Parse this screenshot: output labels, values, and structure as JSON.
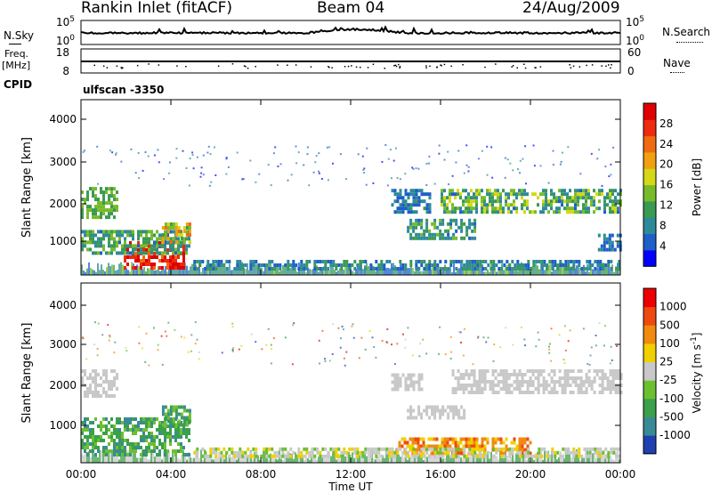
{
  "header": {
    "station": "Rankin Inlet (fitACF)",
    "beam": "Beam 04",
    "date": "24/Aug/2009"
  },
  "left_labels": {
    "nsky": "N.Sky",
    "freq_line1": "Freq.",
    "freq_line2": "[MHz]",
    "cpid": "CPID"
  },
  "right_labels": {
    "nsearch": "N.Search",
    "nave": "Nave"
  },
  "cpid_value": "ulfscan -3350",
  "chart_data": [
    {
      "type": "line",
      "name": "noise",
      "series": [
        {
          "name": "N.Sky"
        },
        {
          "name": "N.Search"
        }
      ],
      "left_ticks": [
        "10^5",
        "10^0"
      ],
      "right_ticks": [
        "10^5",
        "10^0"
      ]
    },
    {
      "type": "scatter",
      "name": "frequency-nave",
      "series": [
        {
          "name": "Freq."
        },
        {
          "name": "Nave"
        }
      ],
      "left_ticks": [
        "18",
        "8"
      ],
      "right_ticks": [
        "60",
        "0"
      ]
    },
    {
      "type": "heatmap",
      "name": "power",
      "ylabel": "Slant Range [km]",
      "yticks": [
        "4000",
        "3000",
        "2000",
        "1000"
      ],
      "ylim": [
        180,
        4500
      ],
      "colorbar": {
        "label": "Power [dB]",
        "ticks": [
          "28",
          "24",
          "20",
          "16",
          "12",
          "8",
          "4"
        ],
        "range": [
          0,
          32
        ],
        "colors": [
          "#0000ff",
          "#1e5fc8",
          "#2e8a9a",
          "#3a9a52",
          "#78bb2a",
          "#d4d818",
          "#f0a010",
          "#ef6a10",
          "#ee2a10",
          "#e00000"
        ]
      }
    },
    {
      "type": "heatmap",
      "name": "velocity",
      "ylabel": "Slant Range [km]",
      "yticks": [
        "4000",
        "3000",
        "2000",
        "1000"
      ],
      "ylim": [
        180,
        4500
      ],
      "xlabel": "Time UT",
      "xticks": [
        "00:00",
        "04:00",
        "08:00",
        "12:00",
        "16:00",
        "20:00",
        "00:00"
      ],
      "colorbar": {
        "label": "Velocity [m s^-1]",
        "ticks": [
          "1000",
          "500",
          "100",
          "25",
          "-25",
          "-100",
          "-500",
          "-1000"
        ],
        "colors": [
          "#2040b0",
          "#3a8a96",
          "#3aa04a",
          "#6cc030",
          "#c8c8c8",
          "#f0d000",
          "#f08a10",
          "#ee4a10",
          "#ee0000"
        ]
      }
    }
  ]
}
